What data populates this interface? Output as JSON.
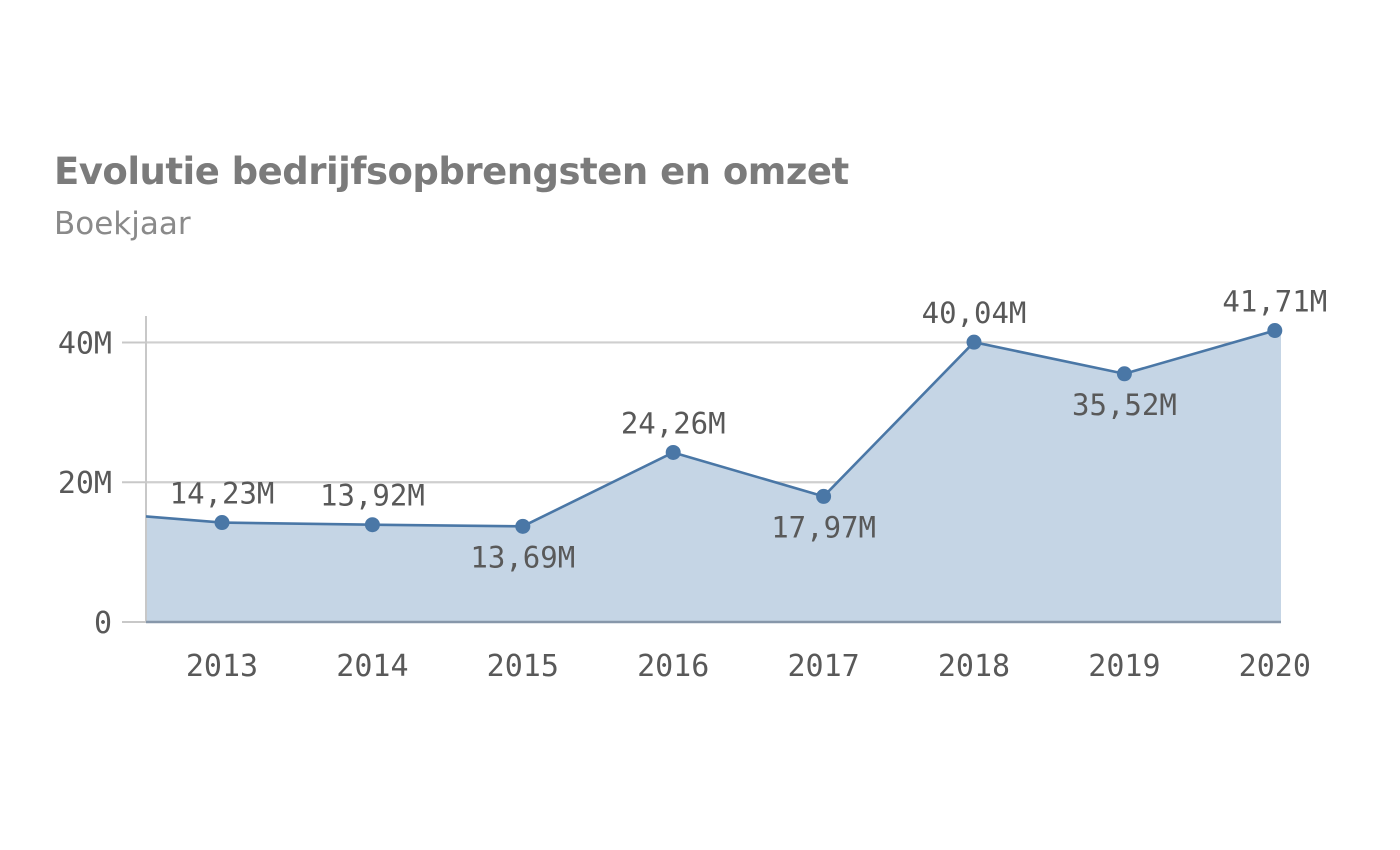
{
  "chart_data": {
    "type": "area",
    "title": "Evolutie bedrijfsopbrengsten en omzet",
    "subtitle": "Boekjaar",
    "xlabel": "",
    "ylabel": "",
    "categories": [
      "2013",
      "2014",
      "2015",
      "2016",
      "2017",
      "2018",
      "2019",
      "2020"
    ],
    "values": [
      14.23,
      13.92,
      13.69,
      24.26,
      17.97,
      40.04,
      35.52,
      41.71
    ],
    "value_labels": [
      "14,23M",
      "13,92M",
      "13,69M",
      "24,26M",
      "17,97M",
      "40,04M",
      "35,52M",
      "41,71M"
    ],
    "label_positions": [
      "above",
      "above",
      "below",
      "above",
      "below",
      "above",
      "below",
      "above"
    ],
    "y_ticks": [
      0,
      20,
      40
    ],
    "y_tick_labels": [
      "0",
      "20M",
      "40M"
    ],
    "ylim": [
      0,
      43.5
    ],
    "unit": "M",
    "grid": true,
    "legend": "none",
    "colors": {
      "line": "#4a77a6",
      "area": "#c5d5e5",
      "marker": "#4a77a6",
      "grid": "#cfcfcf",
      "axis": "#c8c8c8",
      "title": "#7b7b7b",
      "text": "#595959"
    }
  }
}
